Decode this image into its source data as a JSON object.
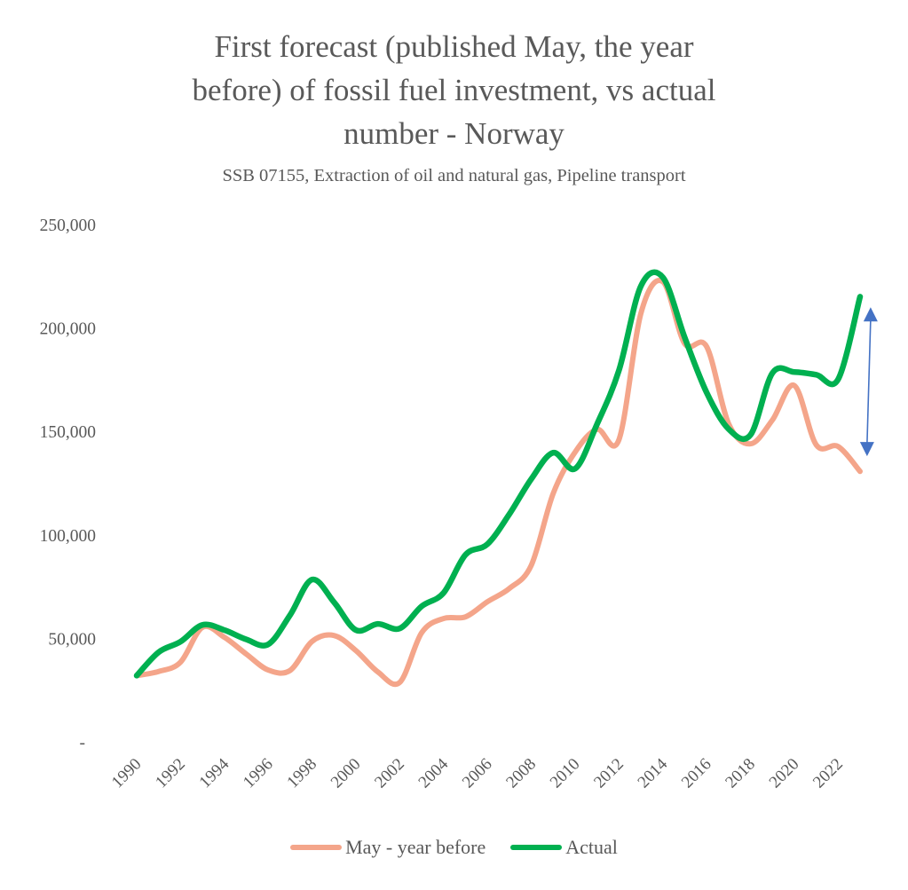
{
  "chart_data": {
    "type": "line",
    "title_lines": [
      "First forecast (published May, the year",
      "before) of fossil fuel investment, vs actual",
      "number - Norway"
    ],
    "subtitle": "SSB 07155, Extraction of oil and natural gas, Pipeline transport",
    "xlabel": "",
    "ylabel": "",
    "ylim": [
      0,
      250000
    ],
    "yticks": [
      {
        "value": 0,
        "label": "-"
      },
      {
        "value": 50000,
        "label": "50,000"
      },
      {
        "value": 100000,
        "label": "100,000"
      },
      {
        "value": 150000,
        "label": "150,000"
      },
      {
        "value": 200000,
        "label": "200,000"
      },
      {
        "value": 250000,
        "label": "250,000"
      }
    ],
    "x": [
      1990,
      1991,
      1992,
      1993,
      1994,
      1995,
      1996,
      1997,
      1998,
      1999,
      2000,
      2001,
      2002,
      2003,
      2004,
      2005,
      2006,
      2007,
      2008,
      2009,
      2010,
      2011,
      2012,
      2013,
      2014,
      2015,
      2016,
      2017,
      2018,
      2019,
      2020,
      2021,
      2022,
      2023
    ],
    "xtick_labels": [
      "1990",
      "1992",
      "1994",
      "1996",
      "1998",
      "2000",
      "2002",
      "2004",
      "2006",
      "2008",
      "2010",
      "2012",
      "2014",
      "2016",
      "2018",
      "2020",
      "2022"
    ],
    "grid": false,
    "legend_position": "bottom",
    "series": [
      {
        "name": "May - year before",
        "color": "#F4A58A",
        "smooth": true,
        "values": [
          32000,
          34000,
          38500,
          55300,
          50500,
          42400,
          34700,
          34500,
          48500,
          51400,
          44100,
          33800,
          28700,
          52700,
          59600,
          60400,
          67700,
          74100,
          85300,
          120000,
          140000,
          151000,
          146000,
          207000,
          222400,
          192400,
          191000,
          153800,
          144000,
          155500,
          172200,
          143500,
          142700,
          130700
        ]
      },
      {
        "name": "Actual",
        "color": "#00B050",
        "smooth": true,
        "values": [
          32000,
          43300,
          48400,
          56500,
          54000,
          49500,
          47100,
          61300,
          78400,
          67500,
          54000,
          57000,
          54800,
          65500,
          72000,
          90400,
          95500,
          110000,
          127000,
          139700,
          132000,
          153500,
          179500,
          220200,
          224500,
          195400,
          168800,
          151200,
          148300,
          178200,
          178700,
          177400,
          175200,
          215100
        ]
      }
    ],
    "annotations": [
      {
        "type": "double-arrow",
        "color": "#4472C4",
        "x_value": 2023.4,
        "from": 210000,
        "to": 138000,
        "description": "gap between forecast and actual in 2023"
      }
    ]
  }
}
